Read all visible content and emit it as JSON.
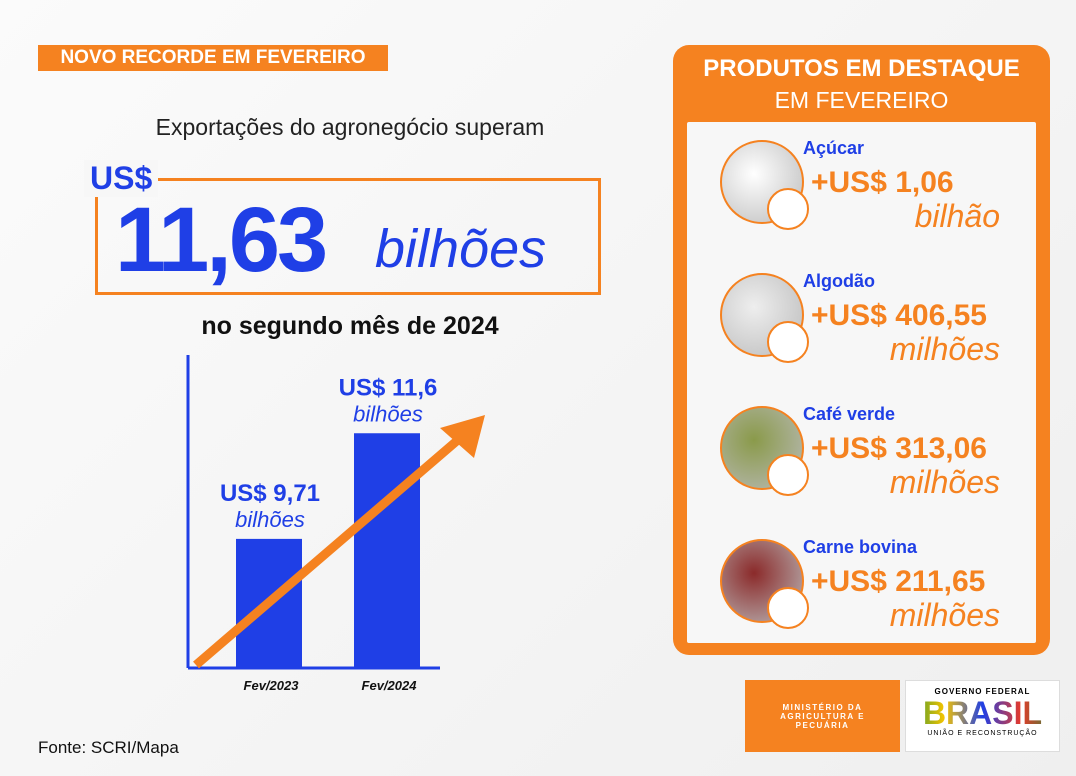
{
  "tag": "NOVO RECORDE EM FEVEREIRO",
  "headline": {
    "intro": "Exportações do agronegócio superam",
    "currency": "US$",
    "amount": "11,63",
    "unit": "bilhões",
    "outro": "no segundo mês de 2024"
  },
  "chart_data": {
    "type": "bar",
    "categories": [
      "Fev/2023",
      "Fev/2024"
    ],
    "values": [
      9.71,
      11.6
    ],
    "value_labels": [
      "US$ 9,71",
      "US$ 11,6"
    ],
    "value_unit": "bilhões",
    "color": "#1f3fe6",
    "ylim": [
      7.4,
      13
    ]
  },
  "source": "Fonte: SCRI/Mapa",
  "panel": {
    "title": "PRODUTOS EM DESTAQUE",
    "subtitle": "EM FEVEREIRO",
    "products": [
      {
        "name": "Açúcar",
        "value": "+US$ 1,06",
        "unit": "bilhão"
      },
      {
        "name": "Algodão",
        "value": "+US$ 406,55",
        "unit": "milhões"
      },
      {
        "name": "Café verde",
        "value": "+US$ 313,06",
        "unit": "milhões"
      },
      {
        "name": "Carne bovina",
        "value": "+US$ 211,65",
        "unit": "milhões"
      }
    ]
  },
  "logos": {
    "ministry": "MINISTÉRIO DA AGRICULTURA E PECUÁRIA",
    "gov": "GOVERNO FEDERAL",
    "brand": "BRASIL",
    "motto": "UNIÃO E RECONSTRUÇÃO"
  }
}
